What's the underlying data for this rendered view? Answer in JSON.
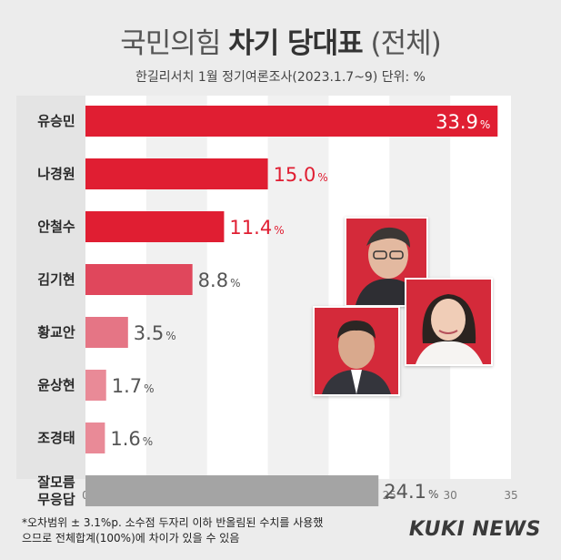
{
  "header": {
    "title_main": "국민의힘",
    "title_bold": "차기 당대표",
    "title_tail": "(전체)",
    "subtitle": "한길리서치 1월 정기여론조사(2023.1.7~9) 단위: %"
  },
  "chart_data": {
    "type": "bar",
    "orientation": "horizontal",
    "categories": [
      "유승민",
      "나경원",
      "안철수",
      "김기현",
      "황교안",
      "윤상현",
      "조경태",
      "잘모름\n무응답"
    ],
    "values": [
      33.9,
      15.0,
      11.4,
      8.8,
      3.5,
      1.7,
      1.6,
      24.1
    ],
    "value_labels": [
      "33.9",
      "15.0",
      "11.4",
      "8.8",
      "3.5",
      "1.7",
      "1.6",
      "24.1"
    ],
    "value_unit": "%",
    "bar_colors": [
      "#e01e32",
      "#e01e32",
      "#e01e32",
      "#e0475c",
      "#e57585",
      "#e98a97",
      "#e98a97",
      "#a4a4a4"
    ],
    "label_colors": [
      "#ffffff",
      "#e01e32",
      "#e01e32",
      "#555555",
      "#555555",
      "#555555",
      "#555555",
      "#555555"
    ],
    "label_inside": [
      true,
      false,
      false,
      false,
      false,
      false,
      false,
      false
    ],
    "xlim": [
      0,
      35
    ],
    "xticks": [
      0,
      5,
      10,
      15,
      20,
      25,
      30,
      35
    ],
    "grid": "vertical-bands"
  },
  "footer": {
    "note": "*오차범위 ± 3.1%p. 소수점 두자리 이하 반올림된 수치를 사용했으므로 전체합계(100%)에 차이가 있을 수 있음",
    "brand": "KUKI NEWS"
  },
  "colors": {
    "accent": "#e01e32",
    "photo_bg": "#d42a3a",
    "background": "#ececec"
  }
}
